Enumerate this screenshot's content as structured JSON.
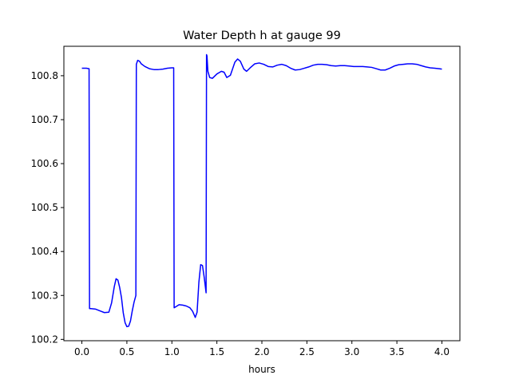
{
  "chart_data": {
    "type": "line",
    "title": "Water Depth h at gauge 99",
    "xlabel": "hours",
    "ylabel": "",
    "xlim": [
      -0.2,
      4.2
    ],
    "ylim": [
      100.197,
      100.867
    ],
    "xticks": [
      0.0,
      0.5,
      1.0,
      1.5,
      2.0,
      2.5,
      3.0,
      3.5,
      4.0
    ],
    "xtick_labels": [
      "0.0",
      "0.5",
      "1.0",
      "1.5",
      "2.0",
      "2.5",
      "3.0",
      "3.5",
      "4.0"
    ],
    "yticks": [
      100.2,
      100.3,
      100.4,
      100.5,
      100.6,
      100.7,
      100.8
    ],
    "ytick_labels": [
      "100.2",
      "100.3",
      "100.4",
      "100.5",
      "100.6",
      "100.7",
      "100.8"
    ],
    "grid": false,
    "series": [
      {
        "name": "",
        "color": "#0000ff",
        "x": [
          0.0,
          0.05,
          0.08,
          0.085,
          0.1,
          0.15,
          0.2,
          0.25,
          0.3,
          0.33,
          0.36,
          0.38,
          0.4,
          0.42,
          0.44,
          0.46,
          0.48,
          0.5,
          0.52,
          0.54,
          0.56,
          0.58,
          0.6,
          0.605,
          0.62,
          0.64,
          0.66,
          0.7,
          0.75,
          0.8,
          0.85,
          0.9,
          0.95,
          1.0,
          1.02,
          1.025,
          1.05,
          1.08,
          1.12,
          1.16,
          1.2,
          1.23,
          1.26,
          1.28,
          1.3,
          1.32,
          1.34,
          1.36,
          1.38,
          1.385,
          1.39,
          1.4,
          1.42,
          1.45,
          1.5,
          1.55,
          1.58,
          1.61,
          1.65,
          1.7,
          1.73,
          1.76,
          1.8,
          1.83,
          1.87,
          1.92,
          1.97,
          2.02,
          2.07,
          2.12,
          2.17,
          2.22,
          2.27,
          2.32,
          2.37,
          2.42,
          2.47,
          2.52,
          2.57,
          2.62,
          2.67,
          2.72,
          2.77,
          2.82,
          2.87,
          2.92,
          2.97,
          3.02,
          3.07,
          3.12,
          3.17,
          3.22,
          3.27,
          3.32,
          3.37,
          3.42,
          3.47,
          3.52,
          3.57,
          3.62,
          3.67,
          3.72,
          3.77,
          3.82,
          3.87,
          3.92,
          3.97,
          4.0
        ],
        "y": [
          100.817,
          100.817,
          100.816,
          100.27,
          100.27,
          100.269,
          100.265,
          100.261,
          100.262,
          100.283,
          100.32,
          100.338,
          100.335,
          100.318,
          100.295,
          100.26,
          100.238,
          100.229,
          100.23,
          100.242,
          100.265,
          100.285,
          100.3,
          100.826,
          100.835,
          100.833,
          100.827,
          100.821,
          100.816,
          100.814,
          100.814,
          100.815,
          100.817,
          100.818,
          100.818,
          100.272,
          100.275,
          100.279,
          100.278,
          100.276,
          100.272,
          100.264,
          100.25,
          100.262,
          100.33,
          100.37,
          100.368,
          100.34,
          100.306,
          100.848,
          100.845,
          100.81,
          100.796,
          100.794,
          100.804,
          100.81,
          100.808,
          100.796,
          100.801,
          100.831,
          100.838,
          100.833,
          100.815,
          100.81,
          100.818,
          100.827,
          100.829,
          100.826,
          100.821,
          100.82,
          100.824,
          100.826,
          100.823,
          100.817,
          100.813,
          100.814,
          100.817,
          100.82,
          100.824,
          100.826,
          100.826,
          100.825,
          100.823,
          100.822,
          100.823,
          100.823,
          100.822,
          100.821,
          100.821,
          100.821,
          100.82,
          100.819,
          100.816,
          100.813,
          100.813,
          100.817,
          100.822,
          100.825,
          100.826,
          100.827,
          100.827,
          100.826,
          100.823,
          100.82,
          100.818,
          100.817,
          100.816,
          100.815
        ]
      }
    ]
  }
}
